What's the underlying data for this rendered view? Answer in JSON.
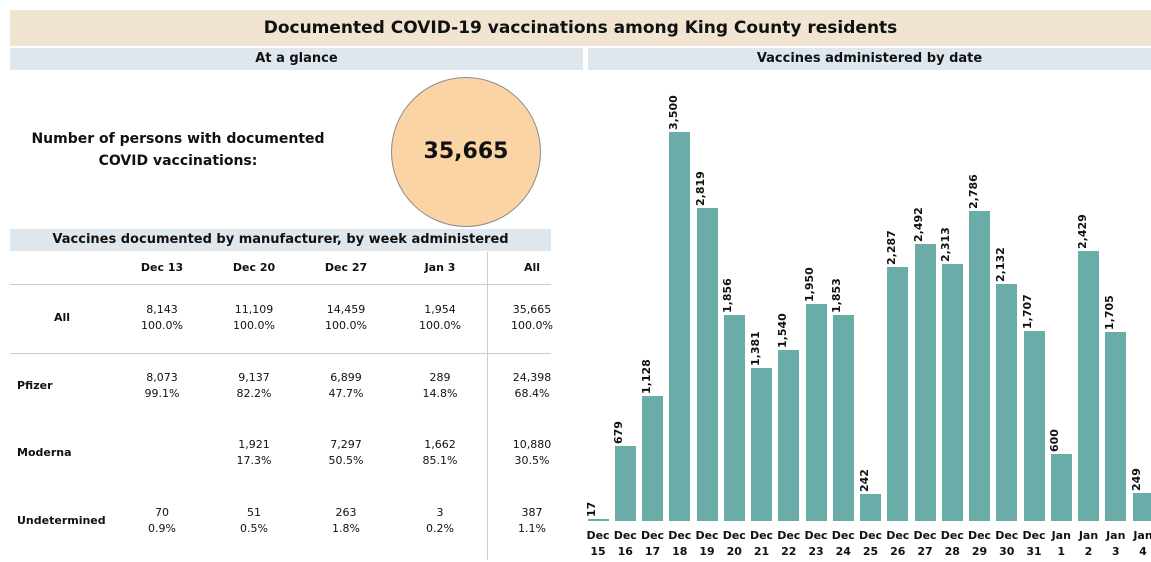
{
  "title": "Documented COVID-19 vaccinations among King County residents",
  "glance": {
    "header": "At a glance",
    "label": "Number of persons with documented COVID vaccinations:",
    "value": "35,665"
  },
  "table": {
    "title": "Vaccines documented by manufacturer, by week administered",
    "columns": [
      "Dec 13",
      "Dec 20",
      "Dec 27",
      "Jan 3",
      "All"
    ],
    "rows": [
      {
        "label": "All",
        "cells": [
          {
            "count": "8,143",
            "pct": "100.0%"
          },
          {
            "count": "11,109",
            "pct": "100.0%"
          },
          {
            "count": "14,459",
            "pct": "100.0%"
          },
          {
            "count": "1,954",
            "pct": "100.0%"
          },
          {
            "count": "35,665",
            "pct": "100.0%"
          }
        ]
      },
      {
        "label": "Pfizer",
        "cells": [
          {
            "count": "8,073",
            "pct": "99.1%"
          },
          {
            "count": "9,137",
            "pct": "82.2%"
          },
          {
            "count": "6,899",
            "pct": "47.7%"
          },
          {
            "count": "289",
            "pct": "14.8%"
          },
          {
            "count": "24,398",
            "pct": "68.4%"
          }
        ]
      },
      {
        "label": "Moderna",
        "cells": [
          null,
          {
            "count": "1,921",
            "pct": "17.3%"
          },
          {
            "count": "7,297",
            "pct": "50.5%"
          },
          {
            "count": "1,662",
            "pct": "85.1%"
          },
          {
            "count": "10,880",
            "pct": "30.5%"
          }
        ]
      },
      {
        "label": "Undetermined",
        "cells": [
          {
            "count": "70",
            "pct": "0.9%"
          },
          {
            "count": "51",
            "pct": "0.5%"
          },
          {
            "count": "263",
            "pct": "1.8%"
          },
          {
            "count": "3",
            "pct": "0.2%"
          },
          {
            "count": "387",
            "pct": "1.1%"
          }
        ]
      }
    ]
  },
  "chart_data": {
    "type": "bar",
    "title": "Vaccines administered by date",
    "color": "#6aaca7",
    "categories": [
      "Dec 15",
      "Dec 16",
      "Dec 17",
      "Dec 18",
      "Dec 19",
      "Dec 20",
      "Dec 21",
      "Dec 22",
      "Dec 23",
      "Dec 24",
      "Dec 25",
      "Dec 26",
      "Dec 27",
      "Dec 28",
      "Dec 29",
      "Dec 30",
      "Dec 31",
      "Jan 1",
      "Jan 2",
      "Jan 3",
      "Jan 4"
    ],
    "values": [
      17,
      679,
      1128,
      3500,
      2819,
      1856,
      1381,
      1540,
      1950,
      1853,
      242,
      2287,
      2492,
      2313,
      2786,
      2132,
      1707,
      600,
      2429,
      1705,
      249
    ],
    "value_labels": [
      "17",
      "679",
      "1,128",
      "3,500",
      "2,819",
      "1,856",
      "1,381",
      "1,540",
      "1,950",
      "1,853",
      "242",
      "2,287",
      "2,492",
      "2,313",
      "2,786",
      "2,132",
      "1,707",
      "600",
      "2,429",
      "1,705",
      "249"
    ]
  }
}
